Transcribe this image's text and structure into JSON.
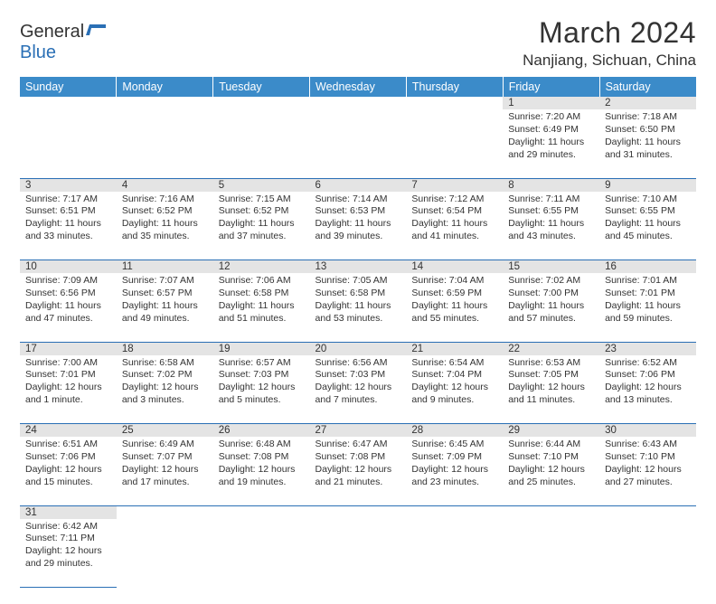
{
  "logo": {
    "text1": "General",
    "text2": "Blue"
  },
  "title": "March 2024",
  "location": "Nanjiang, Sichuan, China",
  "colors": {
    "header_bg": "#3b8bc9",
    "daynum_bg": "#e4e4e4",
    "border": "#2a6fb5",
    "text": "#333333"
  },
  "days": [
    "Sunday",
    "Monday",
    "Tuesday",
    "Wednesday",
    "Thursday",
    "Friday",
    "Saturday"
  ],
  "weeks": [
    [
      null,
      null,
      null,
      null,
      null,
      {
        "n": "1",
        "rise": "Sunrise: 7:20 AM",
        "set": "Sunset: 6:49 PM",
        "dl1": "Daylight: 11 hours",
        "dl2": "and 29 minutes."
      },
      {
        "n": "2",
        "rise": "Sunrise: 7:18 AM",
        "set": "Sunset: 6:50 PM",
        "dl1": "Daylight: 11 hours",
        "dl2": "and 31 minutes."
      }
    ],
    [
      {
        "n": "3",
        "rise": "Sunrise: 7:17 AM",
        "set": "Sunset: 6:51 PM",
        "dl1": "Daylight: 11 hours",
        "dl2": "and 33 minutes."
      },
      {
        "n": "4",
        "rise": "Sunrise: 7:16 AM",
        "set": "Sunset: 6:52 PM",
        "dl1": "Daylight: 11 hours",
        "dl2": "and 35 minutes."
      },
      {
        "n": "5",
        "rise": "Sunrise: 7:15 AM",
        "set": "Sunset: 6:52 PM",
        "dl1": "Daylight: 11 hours",
        "dl2": "and 37 minutes."
      },
      {
        "n": "6",
        "rise": "Sunrise: 7:14 AM",
        "set": "Sunset: 6:53 PM",
        "dl1": "Daylight: 11 hours",
        "dl2": "and 39 minutes."
      },
      {
        "n": "7",
        "rise": "Sunrise: 7:12 AM",
        "set": "Sunset: 6:54 PM",
        "dl1": "Daylight: 11 hours",
        "dl2": "and 41 minutes."
      },
      {
        "n": "8",
        "rise": "Sunrise: 7:11 AM",
        "set": "Sunset: 6:55 PM",
        "dl1": "Daylight: 11 hours",
        "dl2": "and 43 minutes."
      },
      {
        "n": "9",
        "rise": "Sunrise: 7:10 AM",
        "set": "Sunset: 6:55 PM",
        "dl1": "Daylight: 11 hours",
        "dl2": "and 45 minutes."
      }
    ],
    [
      {
        "n": "10",
        "rise": "Sunrise: 7:09 AM",
        "set": "Sunset: 6:56 PM",
        "dl1": "Daylight: 11 hours",
        "dl2": "and 47 minutes."
      },
      {
        "n": "11",
        "rise": "Sunrise: 7:07 AM",
        "set": "Sunset: 6:57 PM",
        "dl1": "Daylight: 11 hours",
        "dl2": "and 49 minutes."
      },
      {
        "n": "12",
        "rise": "Sunrise: 7:06 AM",
        "set": "Sunset: 6:58 PM",
        "dl1": "Daylight: 11 hours",
        "dl2": "and 51 minutes."
      },
      {
        "n": "13",
        "rise": "Sunrise: 7:05 AM",
        "set": "Sunset: 6:58 PM",
        "dl1": "Daylight: 11 hours",
        "dl2": "and 53 minutes."
      },
      {
        "n": "14",
        "rise": "Sunrise: 7:04 AM",
        "set": "Sunset: 6:59 PM",
        "dl1": "Daylight: 11 hours",
        "dl2": "and 55 minutes."
      },
      {
        "n": "15",
        "rise": "Sunrise: 7:02 AM",
        "set": "Sunset: 7:00 PM",
        "dl1": "Daylight: 11 hours",
        "dl2": "and 57 minutes."
      },
      {
        "n": "16",
        "rise": "Sunrise: 7:01 AM",
        "set": "Sunset: 7:01 PM",
        "dl1": "Daylight: 11 hours",
        "dl2": "and 59 minutes."
      }
    ],
    [
      {
        "n": "17",
        "rise": "Sunrise: 7:00 AM",
        "set": "Sunset: 7:01 PM",
        "dl1": "Daylight: 12 hours",
        "dl2": "and 1 minute."
      },
      {
        "n": "18",
        "rise": "Sunrise: 6:58 AM",
        "set": "Sunset: 7:02 PM",
        "dl1": "Daylight: 12 hours",
        "dl2": "and 3 minutes."
      },
      {
        "n": "19",
        "rise": "Sunrise: 6:57 AM",
        "set": "Sunset: 7:03 PM",
        "dl1": "Daylight: 12 hours",
        "dl2": "and 5 minutes."
      },
      {
        "n": "20",
        "rise": "Sunrise: 6:56 AM",
        "set": "Sunset: 7:03 PM",
        "dl1": "Daylight: 12 hours",
        "dl2": "and 7 minutes."
      },
      {
        "n": "21",
        "rise": "Sunrise: 6:54 AM",
        "set": "Sunset: 7:04 PM",
        "dl1": "Daylight: 12 hours",
        "dl2": "and 9 minutes."
      },
      {
        "n": "22",
        "rise": "Sunrise: 6:53 AM",
        "set": "Sunset: 7:05 PM",
        "dl1": "Daylight: 12 hours",
        "dl2": "and 11 minutes."
      },
      {
        "n": "23",
        "rise": "Sunrise: 6:52 AM",
        "set": "Sunset: 7:06 PM",
        "dl1": "Daylight: 12 hours",
        "dl2": "and 13 minutes."
      }
    ],
    [
      {
        "n": "24",
        "rise": "Sunrise: 6:51 AM",
        "set": "Sunset: 7:06 PM",
        "dl1": "Daylight: 12 hours",
        "dl2": "and 15 minutes."
      },
      {
        "n": "25",
        "rise": "Sunrise: 6:49 AM",
        "set": "Sunset: 7:07 PM",
        "dl1": "Daylight: 12 hours",
        "dl2": "and 17 minutes."
      },
      {
        "n": "26",
        "rise": "Sunrise: 6:48 AM",
        "set": "Sunset: 7:08 PM",
        "dl1": "Daylight: 12 hours",
        "dl2": "and 19 minutes."
      },
      {
        "n": "27",
        "rise": "Sunrise: 6:47 AM",
        "set": "Sunset: 7:08 PM",
        "dl1": "Daylight: 12 hours",
        "dl2": "and 21 minutes."
      },
      {
        "n": "28",
        "rise": "Sunrise: 6:45 AM",
        "set": "Sunset: 7:09 PM",
        "dl1": "Daylight: 12 hours",
        "dl2": "and 23 minutes."
      },
      {
        "n": "29",
        "rise": "Sunrise: 6:44 AM",
        "set": "Sunset: 7:10 PM",
        "dl1": "Daylight: 12 hours",
        "dl2": "and 25 minutes."
      },
      {
        "n": "30",
        "rise": "Sunrise: 6:43 AM",
        "set": "Sunset: 7:10 PM",
        "dl1": "Daylight: 12 hours",
        "dl2": "and 27 minutes."
      }
    ],
    [
      {
        "n": "31",
        "rise": "Sunrise: 6:42 AM",
        "set": "Sunset: 7:11 PM",
        "dl1": "Daylight: 12 hours",
        "dl2": "and 29 minutes."
      },
      null,
      null,
      null,
      null,
      null,
      null
    ]
  ]
}
